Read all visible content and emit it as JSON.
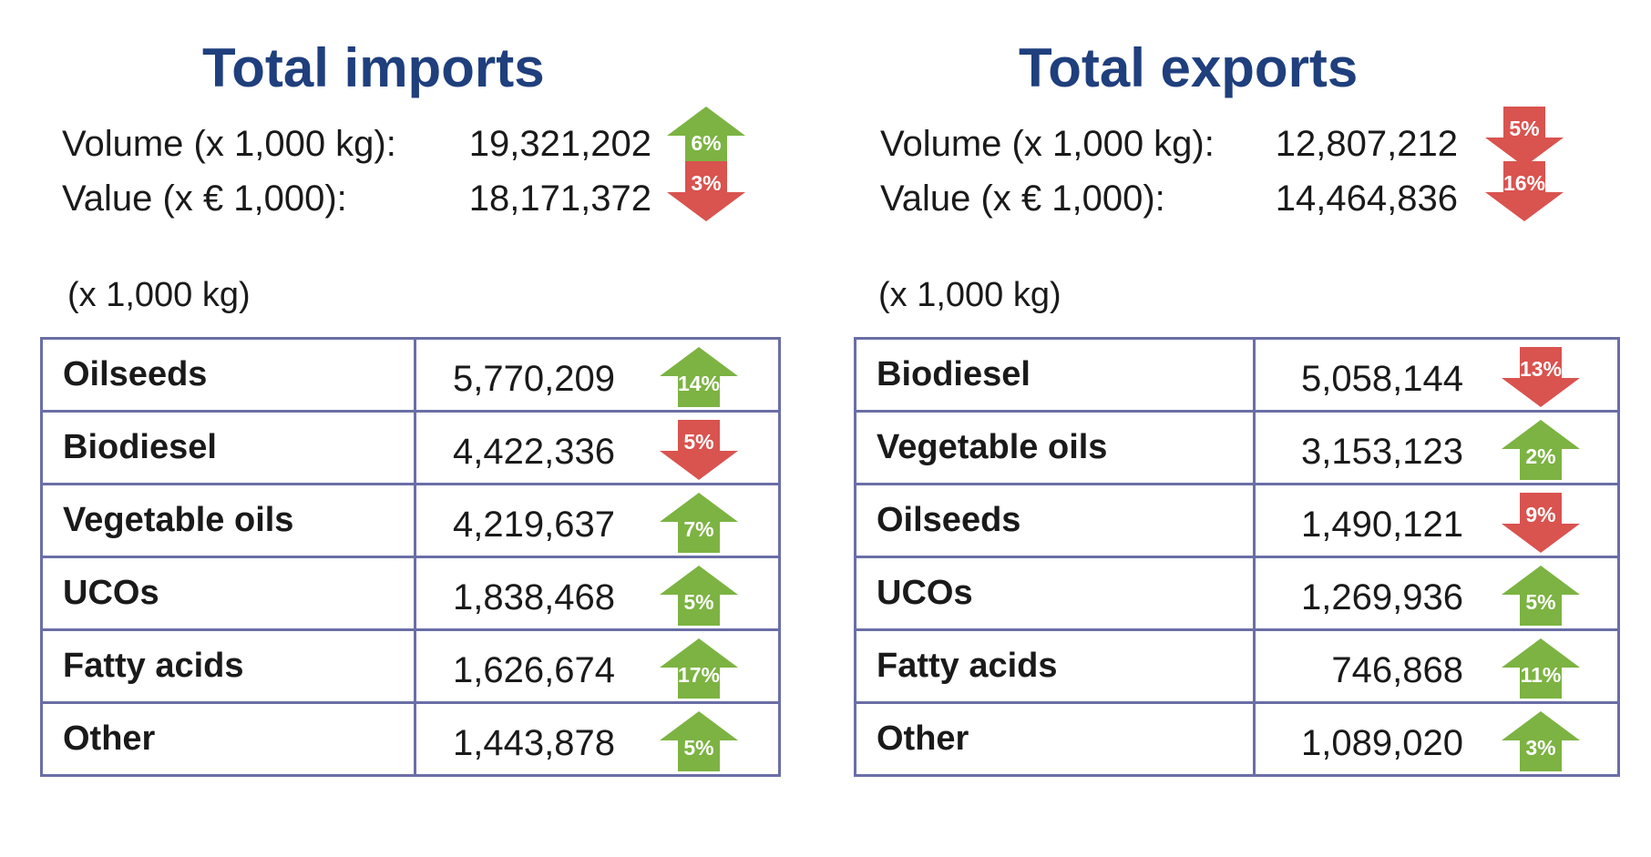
{
  "colors": {
    "title": "#1f3f7d",
    "up": "#7cb342",
    "down": "#d9534f",
    "table_border": "#6a6ea6"
  },
  "imports": {
    "title": "Total imports",
    "volume": {
      "label": "Volume (x 1,000 kg):",
      "value": "19,321,202",
      "change": "6%",
      "direction": "up"
    },
    "value": {
      "label": "Value (x € 1,000):",
      "value": "18,171,372",
      "change": "3%",
      "direction": "down"
    },
    "unit_note": "(x 1,000 kg)",
    "rows": [
      {
        "category": "Oilseeds",
        "value": "5,770,209",
        "change": "14%",
        "direction": "up"
      },
      {
        "category": "Biodiesel",
        "value": "4,422,336",
        "change": "5%",
        "direction": "down"
      },
      {
        "category": "Vegetable oils",
        "value": "4,219,637",
        "change": "7%",
        "direction": "up"
      },
      {
        "category": "UCOs",
        "value": "1,838,468",
        "change": "5%",
        "direction": "up"
      },
      {
        "category": "Fatty acids",
        "value": "1,626,674",
        "change": "17%",
        "direction": "up"
      },
      {
        "category": "Other",
        "value": "1,443,878",
        "change": "5%",
        "direction": "up"
      }
    ]
  },
  "exports": {
    "title": "Total exports",
    "volume": {
      "label": "Volume (x 1,000 kg):",
      "value": "12,807,212",
      "change": "5%",
      "direction": "down"
    },
    "value": {
      "label": "Value (x € 1,000):",
      "value": "14,464,836",
      "change": "16%",
      "direction": "down"
    },
    "unit_note": "(x 1,000 kg)",
    "rows": [
      {
        "category": "Biodiesel",
        "value": "5,058,144",
        "change": "13%",
        "direction": "down"
      },
      {
        "category": "Vegetable oils",
        "value": "3,153,123",
        "change": "2%",
        "direction": "up"
      },
      {
        "category": "Oilseeds",
        "value": "1,490,121",
        "change": "9%",
        "direction": "down"
      },
      {
        "category": "UCOs",
        "value": "1,269,936",
        "change": "5%",
        "direction": "up"
      },
      {
        "category": "Fatty acids",
        "value": "746,868",
        "change": "11%",
        "direction": "up"
      },
      {
        "category": "Other",
        "value": "1,089,020",
        "change": "3%",
        "direction": "up"
      }
    ]
  }
}
